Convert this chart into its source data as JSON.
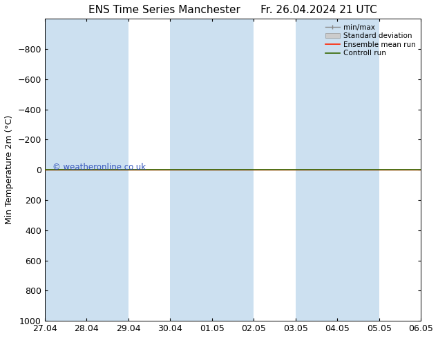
{
  "title": "ENS Time Series Manchester",
  "title2": "Fr. 26.04.2024 21 UTC",
  "ylabel": "Min Temperature 2m (°C)",
  "ylim": [
    -1000,
    1000
  ],
  "yticks": [
    -800,
    -600,
    -400,
    -200,
    0,
    200,
    400,
    600,
    800,
    1000
  ],
  "xtick_labels": [
    "27.04",
    "28.04",
    "29.04",
    "30.04",
    "01.05",
    "02.05",
    "03.05",
    "04.05",
    "05.05",
    "06.05"
  ],
  "bg_color": "#ffffff",
  "plot_bg_color": "#ffffff",
  "band_color_dark": "#cce0f0",
  "band_color_light": "#ddeefa",
  "watermark": "© weatheronline.co.uk",
  "watermark_color": "#3355bb",
  "font_size": 9,
  "title_font_size": 11,
  "ylabel_fontsize": 9,
  "ensemble_mean_color": "#ff2200",
  "control_run_color": "#336600",
  "minmax_color": "#888888",
  "stddev_facecolor": "#cccccc",
  "stddev_edgecolor": "#999999"
}
